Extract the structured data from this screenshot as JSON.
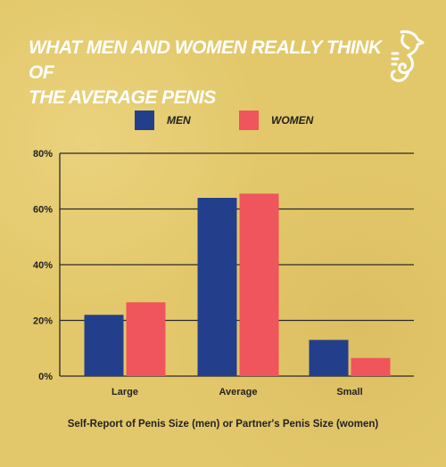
{
  "title_line1": "WHAT MEN AND WOMEN REALLY THINK OF",
  "title_line2": "THE AVERAGE PENIS",
  "logo_icon": "seahorse-logo-icon",
  "colors": {
    "men": "#233f8c",
    "women": "#f0545c",
    "background": "#e3c86b",
    "title": "#ffffff"
  },
  "chart_data": {
    "type": "bar",
    "title": "WHAT MEN AND WOMEN REALLY THINK OF THE AVERAGE PENIS",
    "categories": [
      "Large",
      "Average",
      "Small"
    ],
    "series": [
      {
        "name": "MEN",
        "values": [
          22,
          64,
          13
        ]
      },
      {
        "name": "WOMEN",
        "values": [
          26.5,
          65.5,
          6.5
        ]
      }
    ],
    "xlabel": "Self-Report of Penis Size (men) or Partner's Penis Size (women)",
    "ylabel": "",
    "ylim": [
      0,
      80
    ],
    "yticks": [
      "0%",
      "20%",
      "40%",
      "60%",
      "80%"
    ],
    "grid": true,
    "legend": "top-center"
  }
}
